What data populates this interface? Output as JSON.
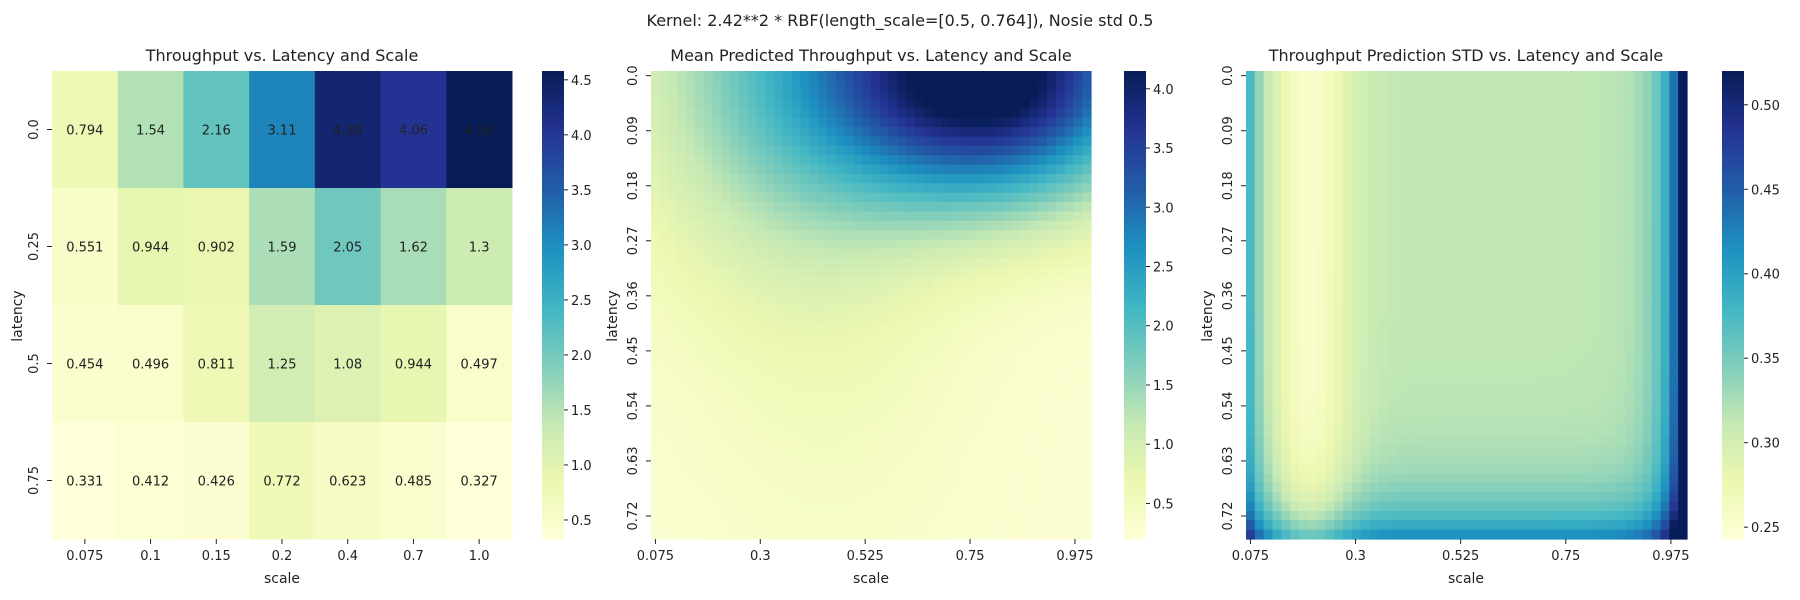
{
  "suptitle": "Kernel: 2.42**2 * RBF(length_scale=[0.5, 0.764]), Nosie std 0.5",
  "chart_data": [
    {
      "type": "heatmap",
      "title": "Throughput vs. Latency and Scale",
      "xlabel": "scale",
      "ylabel": "latency",
      "x": [
        "0.075",
        "0.1",
        "0.15",
        "0.2",
        "0.4",
        "0.7",
        "1.0"
      ],
      "y": [
        "0.0",
        "0.25",
        "0.5",
        "0.75"
      ],
      "values": [
        [
          0.794,
          1.54,
          2.16,
          3.11,
          4.38,
          4.06,
          4.58
        ],
        [
          0.551,
          0.944,
          0.902,
          1.59,
          2.05,
          1.62,
          1.3
        ],
        [
          0.454,
          0.496,
          0.811,
          1.25,
          1.08,
          0.944,
          0.497
        ],
        [
          0.331,
          0.412,
          0.426,
          0.772,
          0.623,
          0.485,
          0.327
        ]
      ],
      "annotations": [
        [
          "0.794",
          "1.54",
          "2.16",
          "3.11",
          "4.38",
          "4.06",
          "4.58"
        ],
        [
          "0.551",
          "0.944",
          "0.902",
          "1.59",
          "2.05",
          "1.62",
          "1.3"
        ],
        [
          "0.454",
          "0.496",
          "0.811",
          "1.25",
          "1.08",
          "0.944",
          "0.497"
        ],
        [
          "0.331",
          "0.412",
          "0.426",
          "0.772",
          "0.623",
          "0.485",
          "0.327"
        ]
      ],
      "colormap": "YlGnBu",
      "vmin": 0.327,
      "vmax": 4.58,
      "colorbar_ticks": [
        0.5,
        1.0,
        1.5,
        2.0,
        2.5,
        3.0,
        3.5,
        4.0,
        4.5
      ]
    },
    {
      "type": "heatmap",
      "title": "Mean Predicted Throughput vs. Latency and Scale",
      "xlabel": "scale",
      "ylabel": "latency",
      "x_range": [
        0.075,
        1.0
      ],
      "y_range": [
        0.0,
        0.75
      ],
      "grid": [
        50,
        50
      ],
      "xticks": [
        "0.075",
        "0.3",
        "0.525",
        "0.75",
        "0.975"
      ],
      "yticks": [
        "0.0",
        "0.09",
        "0.18",
        "0.27",
        "0.36",
        "0.45",
        "0.54",
        "0.63",
        "0.72"
      ],
      "colormap": "YlGnBu",
      "vmin": 0.2,
      "vmax": 4.15,
      "colorbar_ticks": [
        0.5,
        1.0,
        1.5,
        2.0,
        2.5,
        3.0,
        3.5,
        4.0
      ]
    },
    {
      "type": "heatmap",
      "title": "Throughput Prediction STD vs. Latency and Scale",
      "xlabel": "scale",
      "ylabel": "latency",
      "x_range": [
        0.075,
        1.0
      ],
      "y_range": [
        0.0,
        0.75
      ],
      "grid": [
        50,
        50
      ],
      "xticks": [
        "0.075",
        "0.3",
        "0.525",
        "0.75",
        "0.975"
      ],
      "yticks": [
        "0.0",
        "0.09",
        "0.18",
        "0.27",
        "0.36",
        "0.45",
        "0.54",
        "0.63",
        "0.72"
      ],
      "colormap": "YlGnBu",
      "vmin": 0.243,
      "vmax": 0.52,
      "colorbar_ticks": [
        0.25,
        0.3,
        0.35,
        0.4,
        0.45,
        0.5
      ]
    }
  ]
}
